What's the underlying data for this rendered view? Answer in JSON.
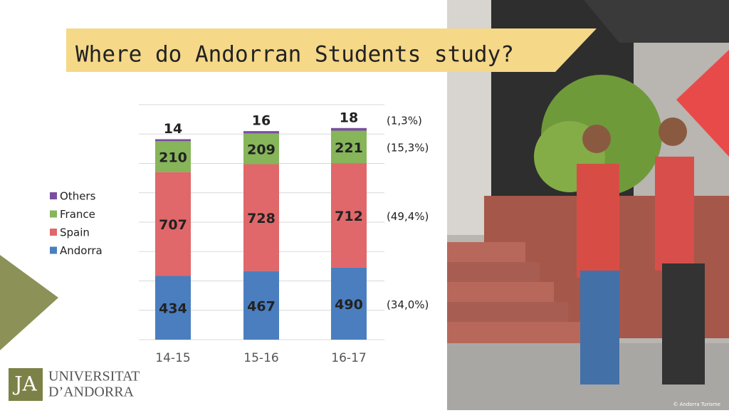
{
  "chart_data": {
    "type": "stacked-bar",
    "title": "Where do Andorran Students study?",
    "categories": [
      "14-15",
      "15-16",
      "16-17"
    ],
    "series": [
      {
        "name": "Andorra",
        "color": "#4a7ebf",
        "values": [
          434,
          467,
          490
        ]
      },
      {
        "name": "Spain",
        "color": "#e0676a",
        "values": [
          707,
          728,
          712
        ]
      },
      {
        "name": "France",
        "color": "#86b55a",
        "values": [
          210,
          209,
          221
        ]
      },
      {
        "name": "Others",
        "color": "#7b4fa0",
        "values": [
          14,
          16,
          18
        ]
      }
    ],
    "share_labels": [
      "(34,0%)",
      "(49,4%)",
      "(15,3%)",
      "(1,3%)"
    ],
    "ylim": [
      0,
      1600
    ],
    "yticks": [
      0,
      200,
      400,
      600,
      800,
      1000,
      1200,
      1400,
      1600
    ],
    "grid": true
  },
  "logo": {
    "line1": "UNIVERSITAT",
    "line2": "D’ANDORRA"
  },
  "photo_credit": "© Andorra Turisme"
}
